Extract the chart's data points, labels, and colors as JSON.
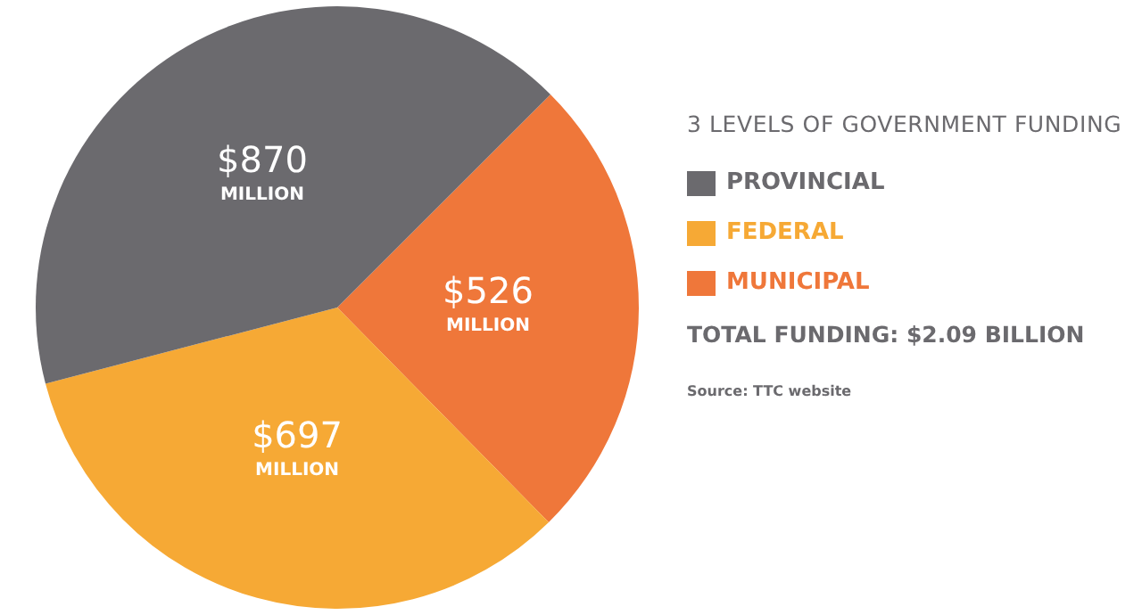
{
  "chart_data": {
    "type": "pie",
    "legend_title": "3 LEVELS OF GOVERNMENT FUNDING",
    "categories": [
      "PROVINCIAL",
      "FEDERAL",
      "MUNICIPAL"
    ],
    "values": [
      870,
      697,
      526
    ],
    "value_labels": [
      "$870 MILLION",
      "$697 MILLION",
      "$526 MILLION"
    ],
    "colors": [
      "#6b6a6e",
      "#f6a935",
      "#ef773a"
    ],
    "legend": "right",
    "annotations": [
      "TOTAL FUNDING: $2.09 BILLION",
      "Source: TTC website"
    ]
  }
}
